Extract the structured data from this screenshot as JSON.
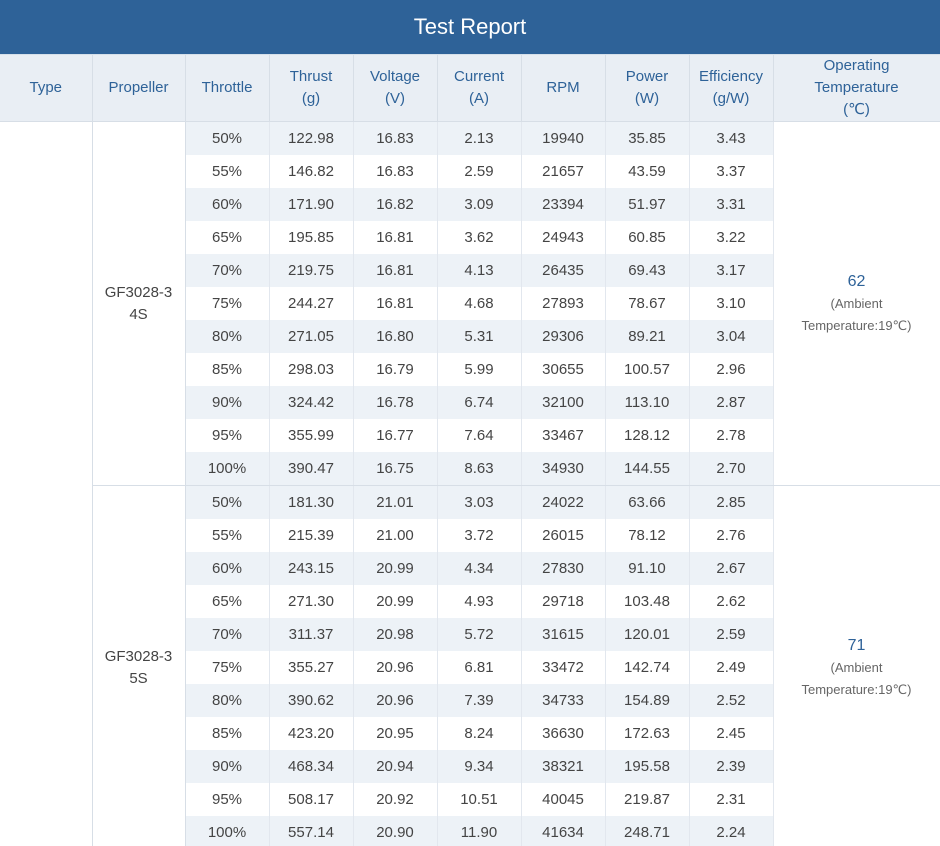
{
  "title": "Test Report",
  "headers": {
    "type": "Type",
    "propeller": "Propeller",
    "throttle": "Throttle",
    "thrust": [
      "Thrust",
      "(g)"
    ],
    "voltage": [
      "Voltage",
      "(V)"
    ],
    "current": [
      "Current",
      "(A)"
    ],
    "rpm": "RPM",
    "power": [
      "Power",
      "(W)"
    ],
    "efficiency": [
      "Efficiency",
      "(g/W)"
    ],
    "temperature": [
      "Operating",
      "Temperature",
      "(℃)"
    ]
  },
  "type": "",
  "groups": [
    {
      "propeller": [
        "GF3028-3",
        "4S"
      ],
      "temp": "62",
      "ambient": [
        "(Ambient",
        "Temperature:19℃)"
      ],
      "rows": [
        [
          "50%",
          "122.98",
          "16.83",
          "2.13",
          "19940",
          "35.85",
          "3.43"
        ],
        [
          "55%",
          "146.82",
          "16.83",
          "2.59",
          "21657",
          "43.59",
          "3.37"
        ],
        [
          "60%",
          "171.90",
          "16.82",
          "3.09",
          "23394",
          "51.97",
          "3.31"
        ],
        [
          "65%",
          "195.85",
          "16.81",
          "3.62",
          "24943",
          "60.85",
          "3.22"
        ],
        [
          "70%",
          "219.75",
          "16.81",
          "4.13",
          "26435",
          "69.43",
          "3.17"
        ],
        [
          "75%",
          "244.27",
          "16.81",
          "4.68",
          "27893",
          "78.67",
          "3.10"
        ],
        [
          "80%",
          "271.05",
          "16.80",
          "5.31",
          "29306",
          "89.21",
          "3.04"
        ],
        [
          "85%",
          "298.03",
          "16.79",
          "5.99",
          "30655",
          "100.57",
          "2.96"
        ],
        [
          "90%",
          "324.42",
          "16.78",
          "6.74",
          "32100",
          "113.10",
          "2.87"
        ],
        [
          "95%",
          "355.99",
          "16.77",
          "7.64",
          "33467",
          "128.12",
          "2.78"
        ],
        [
          "100%",
          "390.47",
          "16.75",
          "8.63",
          "34930",
          "144.55",
          "2.70"
        ]
      ]
    },
    {
      "propeller": [
        "GF3028-3",
        "5S"
      ],
      "temp": "71",
      "ambient": [
        "(Ambient",
        "Temperature:19℃)"
      ],
      "rows": [
        [
          "50%",
          "181.30",
          "21.01",
          "3.03",
          "24022",
          "63.66",
          "2.85"
        ],
        [
          "55%",
          "215.39",
          "21.00",
          "3.72",
          "26015",
          "78.12",
          "2.76"
        ],
        [
          "60%",
          "243.15",
          "20.99",
          "4.34",
          "27830",
          "91.10",
          "2.67"
        ],
        [
          "65%",
          "271.30",
          "20.99",
          "4.93",
          "29718",
          "103.48",
          "2.62"
        ],
        [
          "70%",
          "311.37",
          "20.98",
          "5.72",
          "31615",
          "120.01",
          "2.59"
        ],
        [
          "75%",
          "355.27",
          "20.96",
          "6.81",
          "33472",
          "142.74",
          "2.49"
        ],
        [
          "80%",
          "390.62",
          "20.96",
          "7.39",
          "34733",
          "154.89",
          "2.52"
        ],
        [
          "85%",
          "423.20",
          "20.95",
          "8.24",
          "36630",
          "172.63",
          "2.45"
        ],
        [
          "90%",
          "468.34",
          "20.94",
          "9.34",
          "38321",
          "195.58",
          "2.39"
        ],
        [
          "95%",
          "508.17",
          "20.92",
          "10.51",
          "40045",
          "219.87",
          "2.31"
        ],
        [
          "100%",
          "557.14",
          "20.90",
          "11.90",
          "41634",
          "248.71",
          "2.24"
        ]
      ]
    }
  ]
}
